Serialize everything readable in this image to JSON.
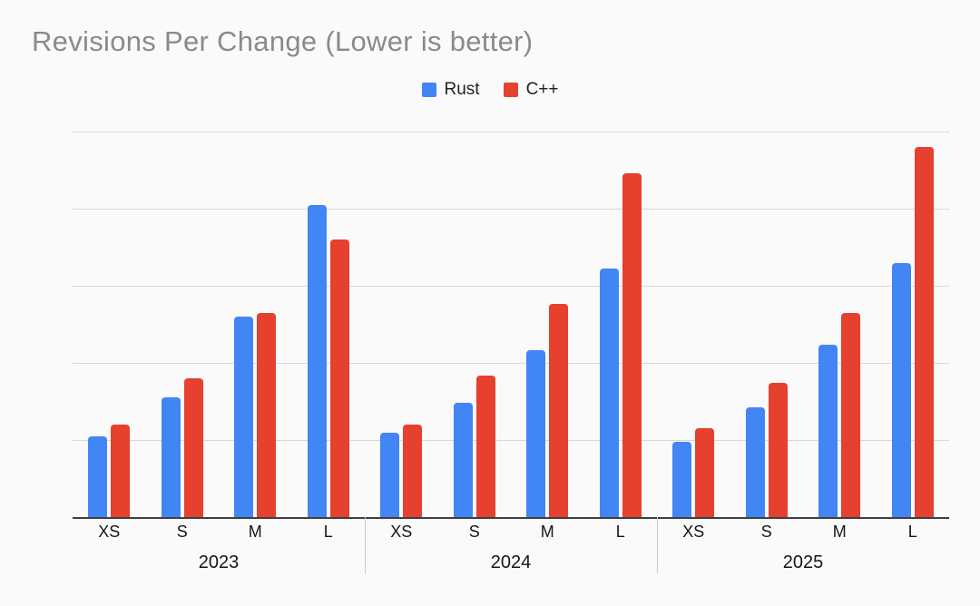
{
  "chart_data": {
    "type": "bar",
    "title": "Revisions Per Change (Lower is better)",
    "categories": [
      "XS",
      "S",
      "M",
      "L"
    ],
    "groups": [
      "2023",
      "2024",
      "2025"
    ],
    "series": [
      {
        "name": "Rust",
        "color": "#4285f4",
        "values": {
          "2023": [
            1.05,
            1.55,
            2.6,
            4.05
          ],
          "2024": [
            1.1,
            1.48,
            2.17,
            3.22
          ],
          "2025": [
            0.98,
            1.42,
            2.24,
            3.29
          ]
        }
      },
      {
        "name": "C++",
        "color": "#e6402f",
        "values": {
          "2023": [
            1.2,
            1.8,
            2.65,
            3.6
          ],
          "2024": [
            1.2,
            1.84,
            2.76,
            4.46
          ],
          "2025": [
            1.15,
            1.74,
            2.65,
            4.8
          ]
        }
      }
    ],
    "ylim": [
      0,
      5
    ],
    "gridline_values": [
      1,
      2,
      3,
      4,
      5
    ],
    "y_axis_labels_visible": false,
    "grid": "horizontal",
    "legend_position": "top-center",
    "xlabel": "",
    "ylabel": "",
    "colors": {
      "background": "#fbfafa",
      "title_text": "#8a8a8a",
      "axis_text": "#161616",
      "gridline": "#d8d8d8",
      "baseline": "#3f3f3f",
      "section_separator": "#c8c8c8"
    }
  }
}
